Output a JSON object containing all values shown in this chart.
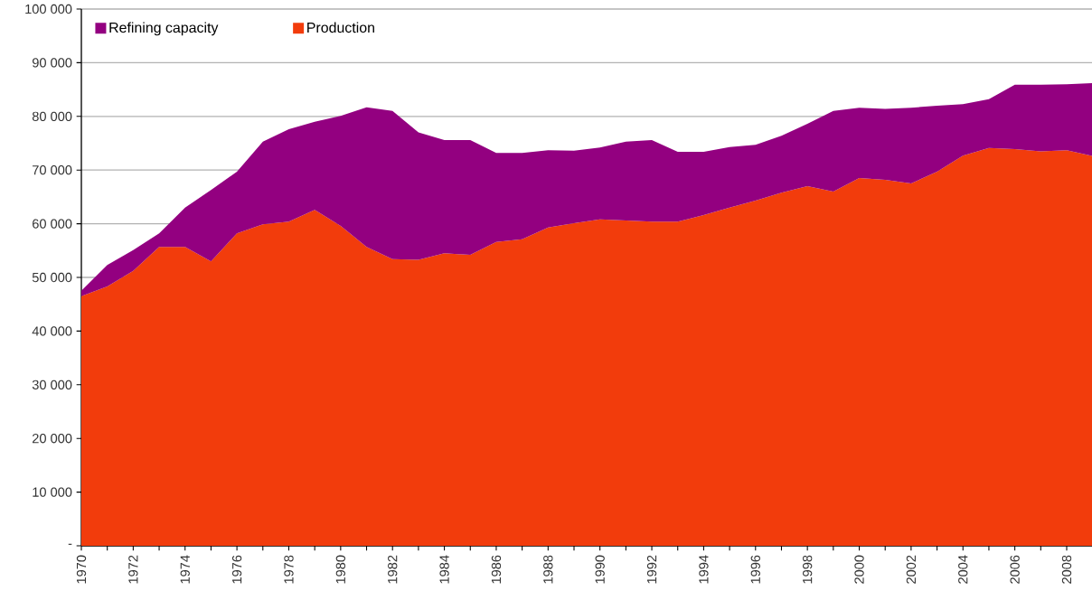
{
  "chart_data": {
    "type": "area",
    "x": [
      1970,
      1971,
      1972,
      1973,
      1974,
      1975,
      1976,
      1977,
      1978,
      1979,
      1980,
      1981,
      1982,
      1983,
      1984,
      1985,
      1986,
      1987,
      1988,
      1989,
      1990,
      1991,
      1992,
      1993,
      1994,
      1995,
      1996,
      1997,
      1998,
      1999,
      2000,
      2001,
      2002,
      2003,
      2004,
      2005,
      2006,
      2007,
      2008,
      2009
    ],
    "series": [
      {
        "name": "Refining capacity",
        "color": "#930080",
        "values": [
          47500,
          52300,
          55100,
          58200,
          63000,
          66300,
          69700,
          75300,
          77600,
          79000,
          80100,
          81700,
          81000,
          77000,
          75600,
          75600,
          73200,
          73200,
          73700,
          73600,
          74200,
          75300,
          75600,
          73400,
          73400,
          74300,
          74700,
          76400,
          78600,
          81000,
          81600,
          81400,
          81600,
          82000,
          82300,
          83200,
          85900,
          85900,
          86000,
          86200
        ]
      },
      {
        "name": "Production",
        "color": "#f23c0c",
        "values": [
          46500,
          48300,
          51200,
          55700,
          55700,
          53000,
          58200,
          59900,
          60400,
          62600,
          59600,
          55700,
          53400,
          53300,
          54500,
          54200,
          56600,
          57100,
          59300,
          60100,
          60800,
          60600,
          60400,
          60400,
          61600,
          63000,
          64300,
          65800,
          67000,
          66000,
          68500,
          68200,
          67500,
          69700,
          72700,
          74100,
          73900,
          73500,
          73700,
          72600
        ]
      }
    ],
    "xlim": [
      1970,
      2009
    ],
    "xticks": [
      1970,
      {
        "value": 1971,
        "label": null
      },
      1972,
      {
        "value": 1973,
        "label": null
      },
      1974,
      {
        "value": 1975,
        "label": null
      },
      1976,
      {
        "value": 1977,
        "label": null
      },
      1978,
      {
        "value": 1979,
        "label": null
      },
      1980,
      {
        "value": 1981,
        "label": null
      },
      1982,
      {
        "value": 1983,
        "label": null
      },
      1984,
      {
        "value": 1985,
        "label": null
      },
      1986,
      {
        "value": 1987,
        "label": null
      },
      1988,
      {
        "value": 1989,
        "label": null
      },
      1990,
      {
        "value": 1991,
        "label": null
      },
      1992,
      {
        "value": 1993,
        "label": null
      },
      1994,
      {
        "value": 1995,
        "label": null
      },
      1996,
      {
        "value": 1997,
        "label": null
      },
      1998,
      {
        "value": 1999,
        "label": null
      },
      2000,
      {
        "value": 2001,
        "label": null
      },
      2002,
      {
        "value": 2003,
        "label": null
      },
      2004,
      {
        "value": 2005,
        "label": null
      },
      2006,
      {
        "value": 2007,
        "label": null
      },
      2008,
      {
        "value": 2009,
        "label": null
      }
    ],
    "ylim": [
      0,
      100000
    ],
    "yticks": [
      {
        "value": 0,
        "label": "-"
      },
      {
        "value": 10000,
        "label": "10 000"
      },
      {
        "value": 20000,
        "label": "20 000"
      },
      {
        "value": 30000,
        "label": "30 000"
      },
      {
        "value": 40000,
        "label": "40 000"
      },
      {
        "value": 50000,
        "label": "50 000"
      },
      {
        "value": 60000,
        "label": "60 000"
      },
      {
        "value": 70000,
        "label": "70 000"
      },
      {
        "value": 80000,
        "label": "80 000"
      },
      {
        "value": 90000,
        "label": "90 000"
      },
      {
        "value": 100000,
        "label": "100 000"
      }
    ],
    "grid": "y",
    "legend": "top left"
  }
}
